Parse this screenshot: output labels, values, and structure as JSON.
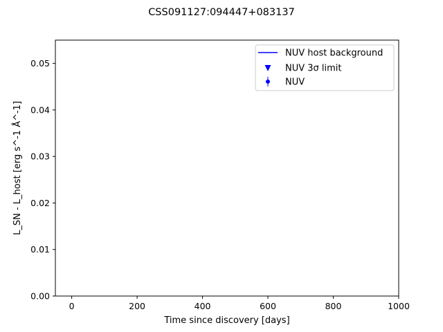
{
  "chart_data": {
    "type": "scatter",
    "title": "CSS091127:094447+083137",
    "xlabel": "Time since discovery [days]",
    "ylabel": "L_SN - L_host [erg s^-1 Å^-1]",
    "xlim": [
      -50,
      1000
    ],
    "ylim": [
      0,
      0.055
    ],
    "xticks": [
      0,
      200,
      400,
      600,
      800,
      1000
    ],
    "xtick_labels": [
      "0",
      "200",
      "400",
      "600",
      "800",
      "1000"
    ],
    "yticks": [
      0,
      0.01,
      0.02,
      0.03,
      0.04,
      0.05
    ],
    "ytick_labels": [
      "0.00",
      "0.01",
      "0.02",
      "0.03",
      "0.04",
      "0.05"
    ],
    "grid": false,
    "legend_position": "top-right",
    "legend": [
      {
        "label": "NUV host background",
        "marker": "line",
        "color": "#0000ff"
      },
      {
        "label": "NUV 3σ limit",
        "marker": "triangle-down",
        "color": "#0000ff"
      },
      {
        "label": "NUV",
        "marker": "errorbar-dot",
        "color": "#0000ff"
      }
    ],
    "series": [
      {
        "name": "NUV host background",
        "x": [],
        "y": []
      },
      {
        "name": "NUV 3σ limit",
        "x": [],
        "y": []
      },
      {
        "name": "NUV",
        "x": [],
        "y": []
      }
    ]
  }
}
